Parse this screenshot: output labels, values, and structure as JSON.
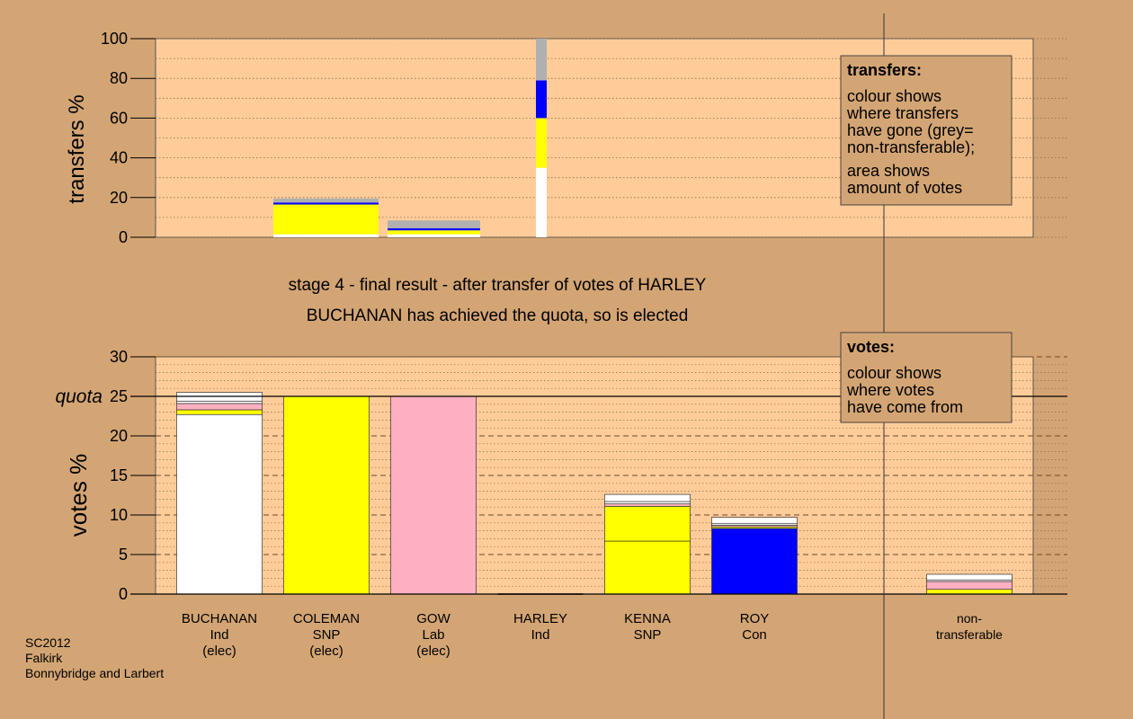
{
  "colors": {
    "background": "#d4a574",
    "plot_fill": "#ffcc99",
    "legend_fill": "#d4a574",
    "Ind": "#ffffff",
    "SNP": "#ffff00",
    "Lab": "#ffb0c0",
    "Con": "#0000ff",
    "non_transferable": "#b0b0b0"
  },
  "chart_data": [
    {
      "type": "bar",
      "stacked": true,
      "ylabel": "transfers %",
      "ylim": [
        0,
        100
      ],
      "yticks": [
        "0",
        "20",
        "40",
        "60",
        "80",
        "100"
      ],
      "grid": "dotted",
      "legend": {
        "title": "transfers:",
        "lines1": [
          "colour shows",
          "where transfers",
          "have gone (grey=",
          "non-transferable);"
        ],
        "lines2": [
          "area shows",
          "amount of votes"
        ]
      },
      "bars": [
        {
          "candidate": "COLEMAN",
          "segments": [
            {
              "party": "Ind",
              "value": 1.5
            },
            {
              "party": "SNP",
              "value": 15.0
            },
            {
              "party": "Con",
              "value": 1.0
            },
            {
              "party": "non_transferable",
              "value": 2.0
            }
          ]
        },
        {
          "candidate": "GOW",
          "segments": [
            {
              "party": "Ind",
              "value": 1.5
            },
            {
              "party": "SNP",
              "value": 2.0
            },
            {
              "party": "Con",
              "value": 1.0
            },
            {
              "party": "non_transferable",
              "value": 4.0
            }
          ]
        },
        {
          "candidate": "HARLEY",
          "segments": [
            {
              "party": "Ind",
              "value": 35
            },
            {
              "party": "SNP",
              "value": 25
            },
            {
              "party": "Con",
              "value": 19
            },
            {
              "party": "non_transferable",
              "value": 21
            }
          ]
        }
      ]
    },
    {
      "type": "bar",
      "stacked": true,
      "ylabel": "votes %",
      "ylim": [
        0,
        30
      ],
      "yticks": [
        "0",
        "5",
        "10",
        "15",
        "20",
        "25",
        "30"
      ],
      "quota": {
        "label": "quota",
        "value": 25
      },
      "grid": "dotted",
      "legend": {
        "title": "votes:",
        "lines": [
          "colour shows",
          "where votes",
          "have come from"
        ]
      },
      "categories": [
        {
          "name": "BUCHANAN",
          "party": "Ind",
          "note": "(elec)"
        },
        {
          "name": "COLEMAN",
          "party": "SNP",
          "note": "(elec)"
        },
        {
          "name": "GOW",
          "party": "Lab",
          "note": "(elec)"
        },
        {
          "name": "HARLEY",
          "party": "Ind",
          "note": ""
        },
        {
          "name": "KENNA",
          "party": "SNP",
          "note": ""
        },
        {
          "name": "ROY",
          "party": "Con",
          "note": ""
        },
        {
          "name": "non-",
          "party": "transferable",
          "note": ""
        }
      ],
      "bars": [
        {
          "candidate": "BUCHANAN",
          "segments": [
            {
              "party": "Ind",
              "value": 22.7
            },
            {
              "party": "SNP",
              "value": 0.6
            },
            {
              "party": "Lab",
              "value": 0.8
            },
            {
              "party": "Ind",
              "value": 0.3
            },
            {
              "party": "Ind",
              "value": 1.1
            }
          ]
        },
        {
          "candidate": "COLEMAN",
          "segments": [
            {
              "party": "SNP",
              "value": 25.0
            }
          ]
        },
        {
          "candidate": "GOW",
          "segments": [
            {
              "party": "Lab",
              "value": 25.0
            }
          ]
        },
        {
          "candidate": "HARLEY",
          "segments": []
        },
        {
          "candidate": "KENNA",
          "segments": [
            {
              "party": "SNP",
              "value": 6.7
            },
            {
              "party": "SNP",
              "value": 4.4
            },
            {
              "party": "Lab",
              "value": 0.3
            },
            {
              "party": "Ind",
              "value": 0.3
            },
            {
              "party": "Ind",
              "value": 0.9
            }
          ]
        },
        {
          "candidate": "ROY",
          "segments": [
            {
              "party": "Con",
              "value": 8.3
            },
            {
              "party": "SNP",
              "value": 0.2
            },
            {
              "party": "Lab",
              "value": 0.2
            },
            {
              "party": "Ind",
              "value": 0.2
            },
            {
              "party": "Ind",
              "value": 0.8
            }
          ]
        },
        {
          "candidate": "non-transferable",
          "segments": [
            {
              "party": "SNP",
              "value": 0.6
            },
            {
              "party": "Lab",
              "value": 1.0
            },
            {
              "party": "Ind",
              "value": 0.2
            },
            {
              "party": "Ind",
              "value": 0.7
            }
          ]
        }
      ]
    }
  ],
  "stage_text": "stage 4 - final result - after transfer of votes of HARLEY",
  "result_text": "BUCHANAN has achieved the quota, so is elected",
  "footer": [
    "SC2012",
    "Falkirk",
    "Bonnybridge and Larbert"
  ]
}
